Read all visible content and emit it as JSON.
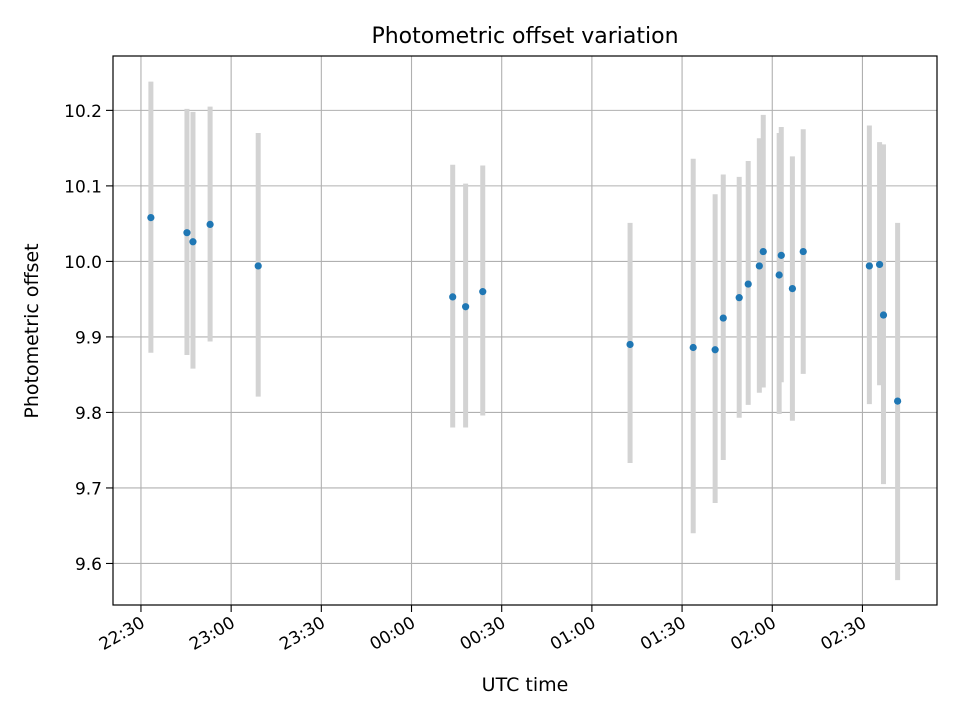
{
  "chart_data": {
    "type": "scatter",
    "title": "Photometric offset variation",
    "xlabel": "UTC time",
    "ylabel": "Photometric offset",
    "x_ticks": [
      {
        "minutes": 0,
        "label": "22:30"
      },
      {
        "minutes": 30,
        "label": "23:00"
      },
      {
        "minutes": 60,
        "label": "23:30"
      },
      {
        "minutes": 90,
        "label": "00:00"
      },
      {
        "minutes": 120,
        "label": "00:30"
      },
      {
        "minutes": 150,
        "label": "01:00"
      },
      {
        "minutes": 180,
        "label": "01:30"
      },
      {
        "minutes": 210,
        "label": "02:00"
      },
      {
        "minutes": 240,
        "label": "02:30"
      }
    ],
    "y_ticks": [
      {
        "value": 9.6,
        "label": "9.6"
      },
      {
        "value": 9.7,
        "label": "9.7"
      },
      {
        "value": 9.8,
        "label": "9.8"
      },
      {
        "value": 9.9,
        "label": "9.9"
      },
      {
        "value": 10.0,
        "label": "10.0"
      },
      {
        "value": 10.1,
        "label": "10.1"
      },
      {
        "value": 10.2,
        "label": "10.2"
      }
    ],
    "xlim_minutes": [
      -9.3,
      264.8
    ],
    "ylim": [
      9.545,
      10.272
    ],
    "grid": true,
    "marker_color": "#1f77b4",
    "errorbar_color": "#d3d3d3",
    "points": [
      {
        "x": 3.3,
        "y": 10.058,
        "lo": 9.879,
        "hi": 10.238
      },
      {
        "x": 15.3,
        "y": 10.038,
        "lo": 9.876,
        "hi": 10.202
      },
      {
        "x": 17.3,
        "y": 10.026,
        "lo": 9.858,
        "hi": 10.198
      },
      {
        "x": 23.0,
        "y": 10.049,
        "lo": 9.894,
        "hi": 10.205
      },
      {
        "x": 39.0,
        "y": 9.994,
        "lo": 9.821,
        "hi": 10.17
      },
      {
        "x": 103.7,
        "y": 9.953,
        "lo": 9.78,
        "hi": 10.128
      },
      {
        "x": 108.0,
        "y": 9.94,
        "lo": 9.78,
        "hi": 10.103
      },
      {
        "x": 113.7,
        "y": 9.96,
        "lo": 9.796,
        "hi": 10.127
      },
      {
        "x": 162.7,
        "y": 9.89,
        "lo": 9.733,
        "hi": 10.051
      },
      {
        "x": 183.7,
        "y": 9.886,
        "lo": 9.64,
        "hi": 10.136
      },
      {
        "x": 191.0,
        "y": 9.883,
        "lo": 9.68,
        "hi": 10.089
      },
      {
        "x": 193.7,
        "y": 9.925,
        "lo": 9.737,
        "hi": 10.115
      },
      {
        "x": 199.0,
        "y": 9.952,
        "lo": 9.793,
        "hi": 10.112
      },
      {
        "x": 202.0,
        "y": 9.97,
        "lo": 9.81,
        "hi": 10.133
      },
      {
        "x": 205.7,
        "y": 9.994,
        "lo": 9.826,
        "hi": 10.163
      },
      {
        "x": 207.0,
        "y": 10.013,
        "lo": 9.833,
        "hi": 10.194
      },
      {
        "x": 212.3,
        "y": 9.982,
        "lo": 9.798,
        "hi": 10.17
      },
      {
        "x": 213.0,
        "y": 10.008,
        "lo": 9.84,
        "hi": 10.178
      },
      {
        "x": 216.7,
        "y": 9.964,
        "lo": 9.789,
        "hi": 10.139
      },
      {
        "x": 220.3,
        "y": 10.013,
        "lo": 9.851,
        "hi": 10.175
      },
      {
        "x": 242.3,
        "y": 9.994,
        "lo": 9.811,
        "hi": 10.18
      },
      {
        "x": 245.7,
        "y": 9.996,
        "lo": 9.836,
        "hi": 10.158
      },
      {
        "x": 247.0,
        "y": 9.929,
        "lo": 9.705,
        "hi": 10.155
      },
      {
        "x": 251.7,
        "y": 9.815,
        "lo": 9.578,
        "hi": 10.051
      }
    ]
  }
}
